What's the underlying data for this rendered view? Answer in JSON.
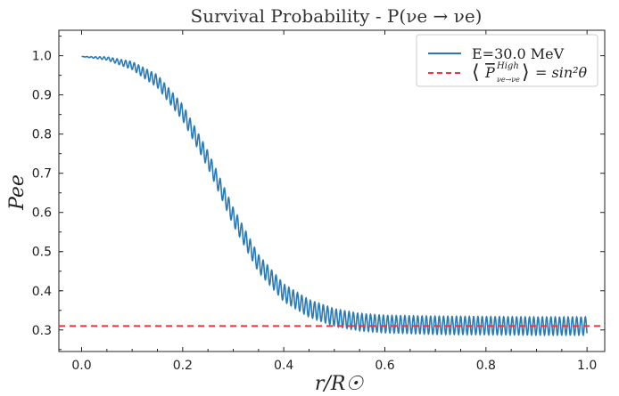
{
  "chart_data": {
    "type": "line",
    "title": "Survival Probability - P(νe → νe)",
    "xlabel": "r/R☉",
    "ylabel": "Pee",
    "xlim": [
      -0.045,
      1.035
    ],
    "ylim": [
      0.245,
      1.065
    ],
    "x_ticks": [
      0.0,
      0.2,
      0.4,
      0.6,
      0.8,
      1.0
    ],
    "x_tick_labels": [
      "0.0",
      "0.2",
      "0.4",
      "0.6",
      "0.8",
      "1.0"
    ],
    "y_ticks": [
      0.3,
      0.4,
      0.5,
      0.6,
      0.7,
      0.8,
      0.9,
      1.0
    ],
    "y_tick_labels": [
      "0.3",
      "0.4",
      "0.5",
      "0.6",
      "0.7",
      "0.8",
      "0.9",
      "1.0"
    ],
    "grid": false,
    "legend_position": "top-right",
    "series": [
      {
        "name": "E=30.0 MeV",
        "color": "#2a7ab8",
        "style": "solid",
        "envelope_x": [
          0.0,
          0.05,
          0.1,
          0.15,
          0.2,
          0.25,
          0.3,
          0.35,
          0.4,
          0.45,
          0.5,
          0.55,
          0.6,
          0.7,
          0.8,
          0.9,
          1.0
        ],
        "envelope_mean": [
          0.998,
          0.993,
          0.975,
          0.935,
          0.855,
          0.735,
          0.59,
          0.47,
          0.395,
          0.355,
          0.332,
          0.32,
          0.315,
          0.312,
          0.311,
          0.31,
          0.31
        ],
        "envelope_amp": [
          0.0,
          0.004,
          0.01,
          0.016,
          0.02,
          0.021,
          0.022,
          0.022,
          0.022,
          0.022,
          0.022,
          0.022,
          0.022,
          0.023,
          0.023,
          0.023,
          0.023
        ],
        "oscillation_period": 0.0085
      },
      {
        "name": "⟨P̄ High νe→νe⟩ = sin²θ",
        "color": "#e8383b",
        "style": "dashed",
        "y": 0.31
      }
    ],
    "legend": {
      "line1_label": "E=30.0 MeV",
      "line2_bar": "P",
      "line2_sup": "High",
      "line2_sub": "νe→νe",
      "line2_rhs": "= sin²θ"
    }
  }
}
